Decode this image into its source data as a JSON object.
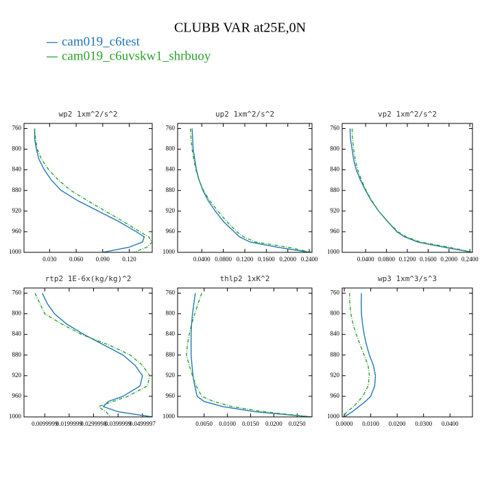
{
  "title": "CLUBB VAR at25E,0N",
  "chart_data": [
    {
      "type": "line",
      "title": "wp2  1xm^2/s^2",
      "levels": [
        760,
        780,
        800,
        820,
        840,
        860,
        880,
        900,
        920,
        940,
        960,
        970,
        980,
        990,
        1000
      ],
      "series": [
        {
          "name": "cam019_c6test",
          "color": "#1f77b4",
          "linestyle": "solid",
          "values": [
            0.013,
            0.013,
            0.015,
            0.018,
            0.024,
            0.032,
            0.043,
            0.062,
            0.085,
            0.108,
            0.128,
            0.137,
            0.135,
            0.12,
            0.09
          ]
        },
        {
          "name": "cam019_c6uvskw1_shrbuoy",
          "color": "#2ca02c",
          "linestyle": "dashed",
          "values": [
            0.013,
            0.014,
            0.016,
            0.021,
            0.029,
            0.04,
            0.054,
            0.073,
            0.093,
            0.113,
            0.132,
            0.142,
            0.146,
            0.14,
            0.125
          ]
        }
      ],
      "xlim": [
        0.001,
        0.146
      ],
      "xticks": [
        {
          "value": 0.03,
          "label": "0.030"
        },
        {
          "value": 0.06,
          "label": "0.060"
        },
        {
          "value": 0.09,
          "label": "0.090"
        },
        {
          "value": 0.12,
          "label": "0.120"
        }
      ],
      "ylim": [
        1000,
        750
      ],
      "yticks": [
        760,
        800,
        840,
        880,
        920,
        960,
        1000
      ]
    },
    {
      "type": "line",
      "title": "up2  1xm^2/s^2",
      "levels": [
        760,
        780,
        800,
        820,
        840,
        860,
        880,
        900,
        920,
        940,
        960,
        970,
        980,
        990,
        1000
      ],
      "series": [
        {
          "name": "cam019_c6test",
          "color": "#1f77b4",
          "linestyle": "solid",
          "values": [
            0.022,
            0.023,
            0.024,
            0.027,
            0.03,
            0.035,
            0.042,
            0.052,
            0.065,
            0.08,
            0.1,
            0.11,
            0.13,
            0.18,
            0.24
          ]
        },
        {
          "name": "cam019_c6uvskw1_shrbuoy",
          "color": "#2ca02c",
          "linestyle": "dashed",
          "values": [
            0.019,
            0.02,
            0.022,
            0.025,
            0.029,
            0.035,
            0.043,
            0.055,
            0.07,
            0.086,
            0.105,
            0.118,
            0.14,
            0.2,
            0.245
          ]
        }
      ],
      "xlim": [
        -0.005,
        0.245
      ],
      "xticks": [
        {
          "value": 0.04,
          "label": "0.0400"
        },
        {
          "value": 0.08,
          "label": "0.0800"
        },
        {
          "value": 0.12,
          "label": "0.1200"
        },
        {
          "value": 0.16,
          "label": "0.1600"
        },
        {
          "value": 0.2,
          "label": "0.2000"
        },
        {
          "value": 0.24,
          "label": "0.2400"
        }
      ],
      "ylim": [
        1000,
        750
      ],
      "yticks": [
        760,
        800,
        840,
        880,
        920,
        960,
        1000
      ]
    },
    {
      "type": "line",
      "title": "vp2  1xm^2/s^2",
      "levels": [
        760,
        780,
        800,
        820,
        840,
        860,
        880,
        900,
        920,
        940,
        960,
        970,
        980,
        990,
        1000
      ],
      "series": [
        {
          "name": "cam019_c6test",
          "color": "#1f77b4",
          "linestyle": "solid",
          "values": [
            0.01,
            0.011,
            0.014,
            0.017,
            0.022,
            0.03,
            0.04,
            0.051,
            0.065,
            0.082,
            0.1,
            0.115,
            0.14,
            0.19,
            0.245
          ]
        },
        {
          "name": "cam019_c6uvskw1_shrbuoy",
          "color": "#2ca02c",
          "linestyle": "dashed",
          "values": [
            0.014,
            0.015,
            0.017,
            0.02,
            0.025,
            0.032,
            0.041,
            0.052,
            0.065,
            0.082,
            0.102,
            0.118,
            0.145,
            0.2,
            0.245
          ]
        }
      ],
      "xlim": [
        -0.005,
        0.245
      ],
      "xticks": [
        {
          "value": 0.04,
          "label": "0.0400"
        },
        {
          "value": 0.08,
          "label": "0.0800"
        },
        {
          "value": 0.12,
          "label": "0.1200"
        },
        {
          "value": 0.16,
          "label": "0.1600"
        },
        {
          "value": 0.2,
          "label": "0.2000"
        },
        {
          "value": 0.24,
          "label": "0.2400"
        }
      ],
      "ylim": [
        1000,
        750
      ],
      "yticks": [
        760,
        800,
        840,
        880,
        920,
        960,
        1000
      ]
    },
    {
      "type": "line",
      "title": "rtp2  1E-6x(kg/kg)^2",
      "levels": [
        760,
        780,
        800,
        820,
        840,
        860,
        880,
        900,
        920,
        940,
        960,
        970,
        980,
        990,
        1000
      ],
      "series": [
        {
          "name": "cam019_c6test",
          "color": "#1f77b4",
          "linestyle": "solid",
          "values": [
            0.009,
            0.011,
            0.014,
            0.019,
            0.026,
            0.034,
            0.042,
            0.047,
            0.05,
            0.049,
            0.042,
            0.036,
            0.034,
            0.04,
            0.054
          ]
        },
        {
          "name": "cam019_c6uvskw1_shrbuoy",
          "color": "#2ca02c",
          "linestyle": "dashed",
          "values": [
            0.006,
            0.008,
            0.01,
            0.017,
            0.025,
            0.036,
            0.045,
            0.05,
            0.053,
            0.052,
            0.044,
            0.038,
            0.032,
            0.035,
            0.037
          ]
        }
      ],
      "xlim": [
        0.0015,
        0.054
      ],
      "xticks": [
        0.0099999,
        0.0199999,
        0.0299998,
        0.0399999,
        0.0499997
      ],
      "ylim": [
        1000,
        750
      ],
      "yticks": [
        760,
        800,
        840,
        880,
        920,
        960,
        1000
      ]
    },
    {
      "type": "line",
      "title": "thlp2  1xK^2",
      "levels": [
        760,
        780,
        800,
        820,
        840,
        860,
        880,
        900,
        920,
        940,
        960,
        970,
        980,
        990,
        1000
      ],
      "series": [
        {
          "name": "cam019_c6test",
          "color": "#1f77b4",
          "linestyle": "solid",
          "values": [
            0.0031,
            0.0028,
            0.0025,
            0.0023,
            0.0022,
            0.0022,
            0.0022,
            0.0024,
            0.0026,
            0.003,
            0.0035,
            0.005,
            0.009,
            0.016,
            0.028
          ]
        },
        {
          "name": "cam019_c6uvskw1_shrbuoy",
          "color": "#2ca02c",
          "linestyle": "dashed",
          "values": [
            0.0045,
            0.0037,
            0.003,
            0.0023,
            0.0018,
            0.0014,
            0.0012,
            0.0018,
            0.0025,
            0.0033,
            0.0045,
            0.007,
            0.011,
            0.018,
            0.028
          ]
        }
      ],
      "xlim": [
        -0.0007,
        0.0282
      ],
      "xticks": [
        {
          "value": 0.005,
          "label": "0.0050"
        },
        {
          "value": 0.01,
          "label": "0.0100"
        },
        {
          "value": 0.015,
          "label": "0.0150"
        },
        {
          "value": 0.02,
          "label": "0.0200"
        },
        {
          "value": 0.025,
          "label": "0.0250"
        }
      ],
      "ylim": [
        1000,
        750
      ],
      "yticks": [
        760,
        800,
        840,
        880,
        920,
        960,
        1000
      ]
    },
    {
      "type": "line",
      "title": "wp3  1xm^3/s^3",
      "levels": [
        760,
        780,
        800,
        820,
        840,
        860,
        880,
        900,
        920,
        940,
        960,
        970,
        980,
        990,
        1000
      ],
      "series": [
        {
          "name": "cam019_c6test",
          "color": "#1f77b4",
          "linestyle": "solid",
          "values": [
            0.0065,
            0.0064,
            0.0065,
            0.0069,
            0.0075,
            0.0084,
            0.0095,
            0.011,
            0.0118,
            0.0115,
            0.01,
            0.008,
            0.0055,
            0.003,
            0.0
          ]
        },
        {
          "name": "cam019_c6uvskw1_shrbuoy",
          "color": "#2ca02c",
          "linestyle": "dashed",
          "values": [
            0.002,
            0.0021,
            0.0025,
            0.0033,
            0.0045,
            0.006,
            0.0075,
            0.009,
            0.0095,
            0.009,
            0.007,
            0.0053,
            0.0035,
            0.001,
            -0.0005
          ]
        }
      ],
      "xlim": [
        -0.0008,
        0.0485
      ],
      "xticks": [
        {
          "value": 0.0,
          "label": "0.0000"
        },
        {
          "value": 0.01,
          "label": "0.0100"
        },
        {
          "value": 0.02,
          "label": "0.0200"
        },
        {
          "value": 0.03,
          "label": "0.0300"
        },
        {
          "value": 0.04,
          "label": "0.0400"
        }
      ],
      "ylim": [
        1000,
        750
      ],
      "yticks": [
        760,
        800,
        840,
        880,
        920,
        960,
        1000
      ]
    }
  ]
}
